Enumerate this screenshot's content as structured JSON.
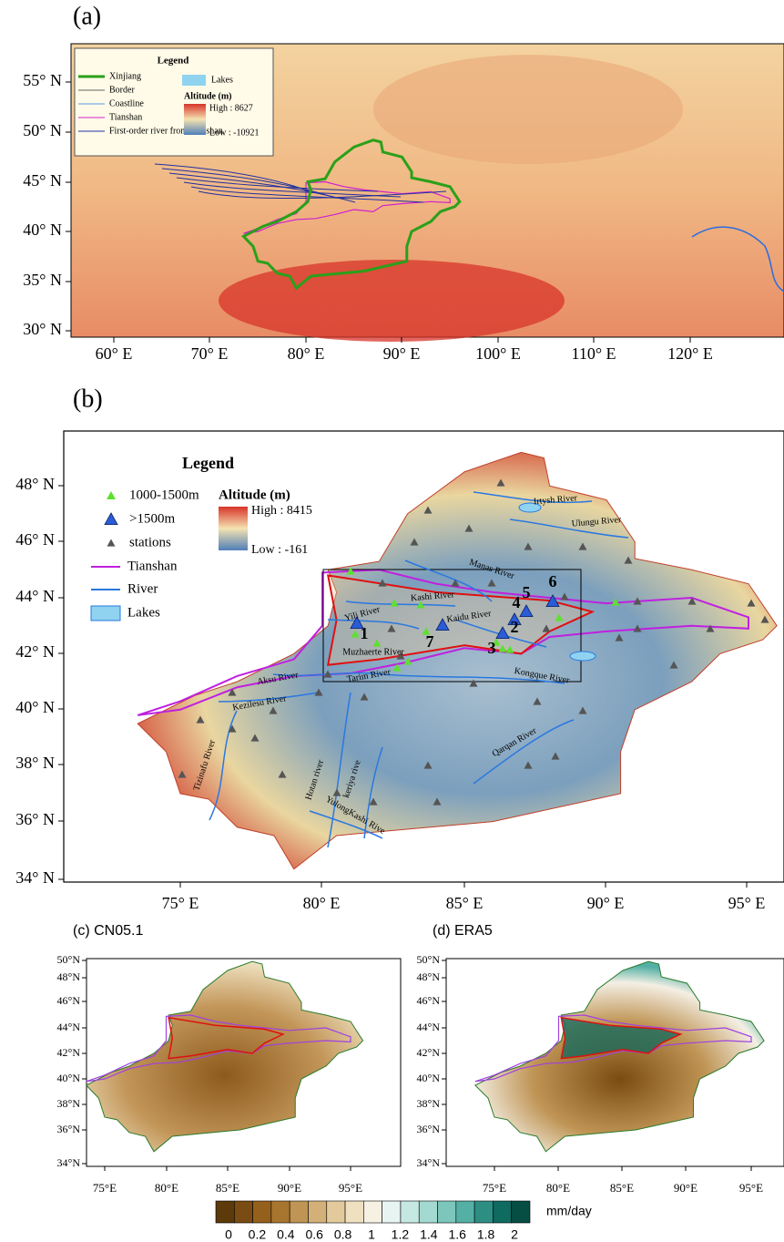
{
  "panel_a": {
    "label": "(a)",
    "legend": {
      "title": "Legend",
      "items": [
        "Xinjiang",
        "Border",
        "Coastline",
        "Tianshan",
        "First-order river from Tianshan",
        "Lakes"
      ],
      "altitude_title": "Altitude (m)",
      "high": "High : 8627",
      "low": "Low : -10921"
    },
    "yticks": [
      "55° N",
      "50° N",
      "45° N",
      "40° N",
      "35° N",
      "30° N"
    ],
    "xticks": [
      "60° E",
      "70° E",
      "80° E",
      "90° E",
      "100° E",
      "110° E",
      "120° E"
    ]
  },
  "panel_b": {
    "label": "(b)",
    "legend": {
      "title": "Legend",
      "items": [
        "1000-1500m",
        ">1500m",
        "stations",
        "Tianshan",
        "River",
        "Lakes"
      ],
      "altitude_title": "Altitude (m)",
      "high": "High : 8415",
      "low": "Low : -161"
    },
    "rivers": [
      "Irtysh River",
      "Ulungu River",
      "Manas River",
      "Kashi River",
      "Yili River",
      "Kaidu River",
      "Muzhaerte River",
      "Aksu River",
      "Tarim River",
      "Kongque River",
      "Kezilesu River",
      "Qarqan River",
      "Tizinafu River",
      "Hotan river",
      "keriya rive",
      "YulongKashi Rive"
    ],
    "station_numbers": [
      "1",
      "2",
      "3",
      "4",
      "5",
      "6",
      "7"
    ],
    "yticks": [
      "48° N",
      "46° N",
      "44° N",
      "42° N",
      "40° N",
      "38° N",
      "36° N",
      "34° N"
    ],
    "xticks": [
      "75° E",
      "80° E",
      "85° E",
      "90° E",
      "95° E"
    ]
  },
  "panel_c": {
    "title": "(c) CN05.1",
    "yticks": [
      "50°N",
      "48°N",
      "46°N",
      "44°N",
      "42°N",
      "40°N",
      "38°N",
      "36°N",
      "34°N"
    ],
    "xticks": [
      "75°E",
      "80°E",
      "85°E",
      "90°E",
      "95°E"
    ]
  },
  "panel_d": {
    "title": "(d) ERA5",
    "yticks": [
      "50°N",
      "48°N",
      "46°N",
      "44°N",
      "42°N",
      "40°N",
      "38°N",
      "36°N",
      "34°N"
    ],
    "xticks": [
      "75°E",
      "80°E",
      "85°E",
      "90°E",
      "95°E"
    ]
  },
  "colorbar": {
    "labels": [
      "0",
      "0.2",
      "0.4",
      "0.6",
      "0.8",
      "1",
      "1.2",
      "1.4",
      "1.6",
      "1.8",
      "2"
    ],
    "unit": "mm/day"
  }
}
